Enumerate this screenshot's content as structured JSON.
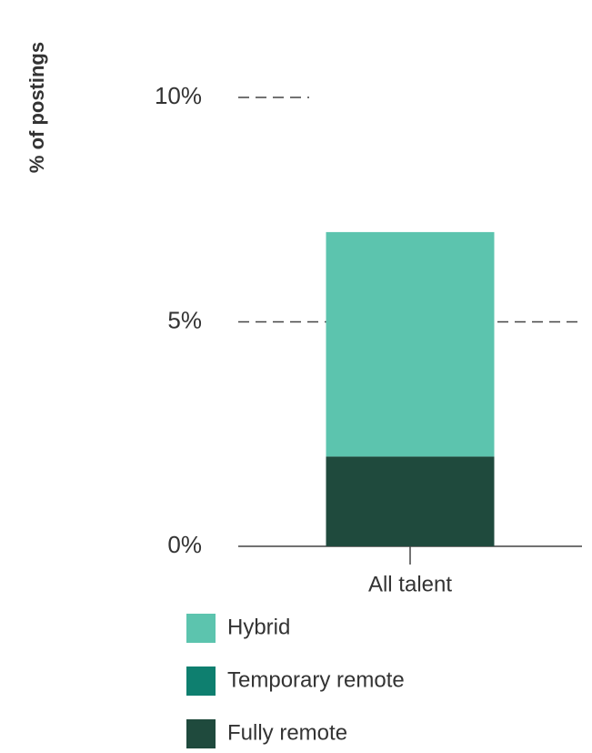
{
  "chart_data": {
    "type": "stacked_bar",
    "y_label": "% of postings",
    "categories": [
      "All talent"
    ],
    "series": [
      {
        "name": "Hybrid",
        "color": "#5cc4ae",
        "values": [
          5
        ]
      },
      {
        "name": "Temporary remote",
        "color": "#0e7f6f",
        "values": [
          0
        ]
      },
      {
        "name": "Fully remote",
        "color": "#1f4a3d",
        "values": [
          2
        ]
      }
    ],
    "ylim": [
      0,
      10
    ],
    "yticks": [
      {
        "value": 0,
        "label": "0%"
      },
      {
        "value": 5,
        "label": "5%"
      },
      {
        "value": 10,
        "label": "10%"
      }
    ],
    "grid": true
  }
}
